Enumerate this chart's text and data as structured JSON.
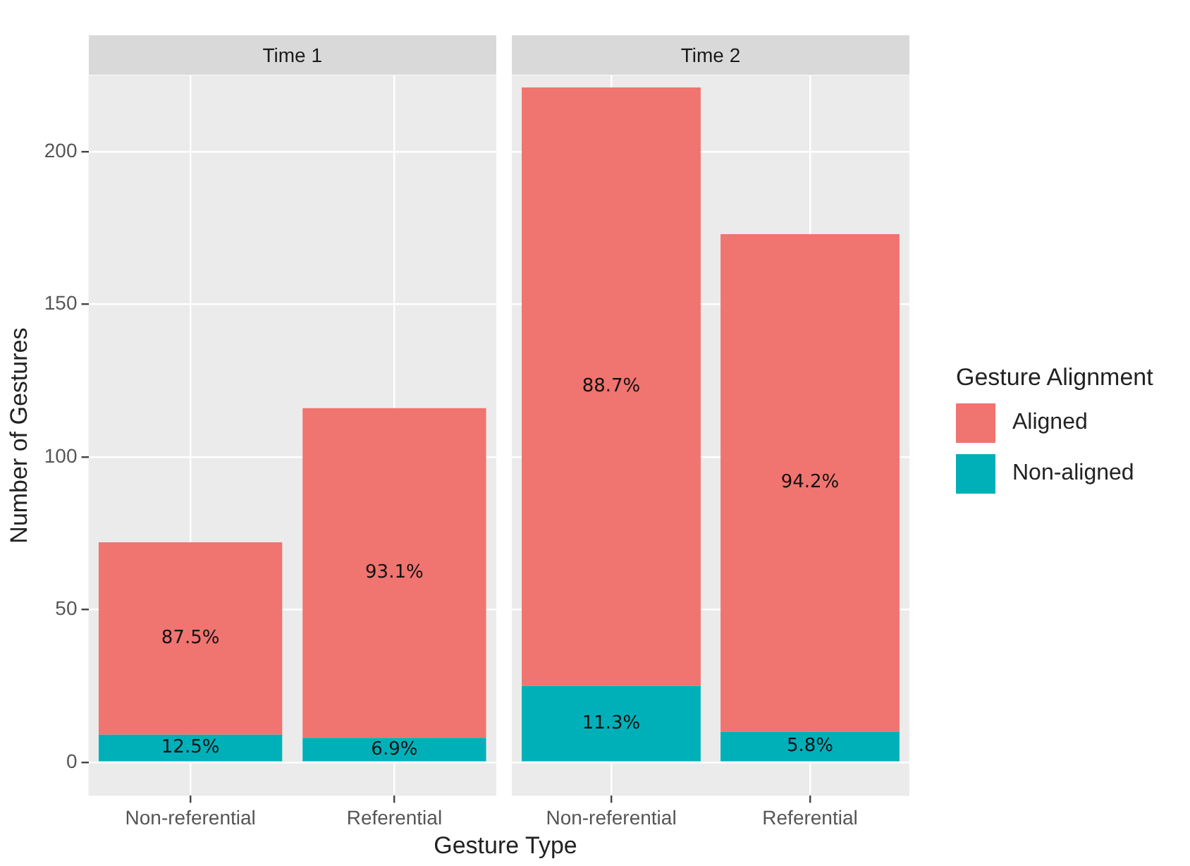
{
  "chart_data": [
    {
      "type": "bar",
      "title": "Time 1",
      "xlabel": "Gesture Type",
      "ylabel": "Number of Gestures",
      "categories": [
        "Non-referential",
        "Referential"
      ],
      "stacked": true,
      "legend_title": "Gesture Alignment",
      "series": [
        {
          "name": "Non-aligned",
          "color": "#00b0b9",
          "values": [
            9,
            8
          ]
        },
        {
          "name": "Aligned",
          "color": "#f07470",
          "values": [
            63,
            108
          ]
        }
      ],
      "annotations": [
        "12.5%",
        "6.9%",
        "87.5%",
        "93.1%"
      ],
      "ylim": [
        -11,
        225
      ],
      "yticks": [
        0,
        50,
        100,
        150,
        200
      ],
      "grid": true,
      "legend": "right"
    },
    {
      "type": "bar",
      "title": "Time 2",
      "categories": [
        "Non-referential",
        "Referential"
      ],
      "stacked": true,
      "series": [
        {
          "name": "Non-aligned",
          "color": "#00b0b9",
          "values": [
            25,
            10
          ]
        },
        {
          "name": "Aligned",
          "color": "#f07470",
          "values": [
            196,
            163
          ]
        }
      ],
      "annotations": [
        "11.3%",
        "5.8%",
        "88.7%",
        "94.2%"
      ],
      "ylim": [
        -11,
        225
      ],
      "yticks": [
        0,
        50,
        100,
        150,
        200
      ],
      "grid": true,
      "legend": "right",
      "tick_labels": "x"
    }
  ]
}
